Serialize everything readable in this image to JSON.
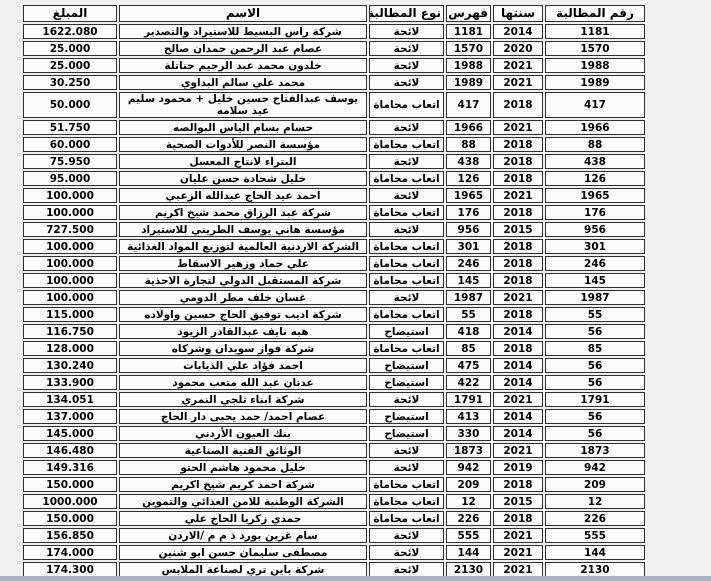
{
  "page": {
    "background_color": "#f1f1f1",
    "bottom_strip_color": "#aab5c1",
    "cell_background": "#fcfcfc",
    "border_color": "#2f2f2f"
  },
  "table": {
    "columns": [
      {
        "key": "claim_no",
        "label": "رقم المطالبة"
      },
      {
        "key": "year",
        "label": "سنتها"
      },
      {
        "key": "index",
        "label": "فهرس"
      },
      {
        "key": "claim_type",
        "label": "نوع المطالبة"
      },
      {
        "key": "name",
        "label": "الاسم"
      },
      {
        "key": "amount",
        "label": "المبلغ"
      }
    ],
    "rows": [
      {
        "claim_no": "1181",
        "year": "2014",
        "index": "1181",
        "claim_type": "لائحة",
        "name": "شركة راس البسيط للاستيراد والتصدير",
        "amount": "1622.080"
      },
      {
        "claim_no": "1570",
        "year": "2020",
        "index": "1570",
        "claim_type": "لائحة",
        "name": "عصام عبد الرحمن حمدان صالح",
        "amount": "25.000"
      },
      {
        "claim_no": "1988",
        "year": "2021",
        "index": "1988",
        "claim_type": "لائحة",
        "name": "خلدون محمد عبد الرحيم حناتلة",
        "amount": "25.000"
      },
      {
        "claim_no": "1989",
        "year": "2021",
        "index": "1989",
        "claim_type": "لائحة",
        "name": "محمد علي سالم البداوي",
        "amount": "30.250"
      },
      {
        "claim_no": "417",
        "year": "2018",
        "index": "417",
        "claim_type": "اتعاب محاماة",
        "name": "يوسف عبدالفتاح حسين خليل + محمود سليم عيد سلامه",
        "amount": "50.000"
      },
      {
        "claim_no": "1966",
        "year": "2021",
        "index": "1966",
        "claim_type": "لائحة",
        "name": "حسام بسام الياس البوالصه",
        "amount": "51.750"
      },
      {
        "claim_no": "88",
        "year": "2018",
        "index": "88",
        "claim_type": "اتعاب محاماة",
        "name": "مؤسسة النصر للأدوات الصحية",
        "amount": "60.000"
      },
      {
        "claim_no": "438",
        "year": "2018",
        "index": "438",
        "claim_type": "لائحة",
        "name": "البتراء لانتاج المعسل",
        "amount": "75.950"
      },
      {
        "claim_no": "126",
        "year": "2018",
        "index": "126",
        "claim_type": "اتعاب محاماة",
        "name": "خليل شحادة حسن عليان",
        "amount": "95.000"
      },
      {
        "claim_no": "1965",
        "year": "2021",
        "index": "1965",
        "claim_type": "لائحة",
        "name": "احمد عيد الحاج عبدالله الزعبي",
        "amount": "100.000"
      },
      {
        "claim_no": "176",
        "year": "2018",
        "index": "176",
        "claim_type": "اتعاب محاماة",
        "name": "شركة عبد الرزاق محمد شيخ اكريم",
        "amount": "100.000"
      },
      {
        "claim_no": "956",
        "year": "2015",
        "index": "956",
        "claim_type": "لائحة",
        "name": "مؤسسة هاني يوسف الطريني للاستيراد",
        "amount": "727.500"
      },
      {
        "claim_no": "301",
        "year": "2018",
        "index": "301",
        "claim_type": "اتعاب محاماة",
        "name": "الشركة الاردنية العالمية لتوزيع المواد الغذائية",
        "amount": "100.000"
      },
      {
        "claim_no": "246",
        "year": "2018",
        "index": "246",
        "claim_type": "اتعاب محاماة",
        "name": "علي حماد وزهير الاسقاط",
        "amount": "100.000"
      },
      {
        "claim_no": "145",
        "year": "2018",
        "index": "145",
        "claim_type": "اتعاب محاماة",
        "name": "شركة المستقبل الدولي لتجارة الاحذية",
        "amount": "100.000"
      },
      {
        "claim_no": "1987",
        "year": "2021",
        "index": "1987",
        "claim_type": "لائحة",
        "name": "غسان خلف مطر الدومي",
        "amount": "100.000"
      },
      {
        "claim_no": "55",
        "year": "2018",
        "index": "55",
        "claim_type": "اتعاب محاماة",
        "name": "شركة اديب توفيق الحاج حسين واولاده",
        "amount": "115.000"
      },
      {
        "claim_no": "56",
        "year": "2014",
        "index": "418",
        "claim_type": "استيضاح",
        "name": "هبه نايف عبدالقادر الزيود",
        "amount": "116.750"
      },
      {
        "claim_no": "85",
        "year": "2018",
        "index": "85",
        "claim_type": "اتعاب محاماة",
        "name": "شركة فواز سويدان وشركاه",
        "amount": "128.000"
      },
      {
        "claim_no": "56",
        "year": "2014",
        "index": "475",
        "claim_type": "استيضاح",
        "name": "احمد فؤاد علي الذيابات",
        "amount": "130.240"
      },
      {
        "claim_no": "56",
        "year": "2014",
        "index": "422",
        "claim_type": "استيضاح",
        "name": "عدنان عبد الله متعب محمود",
        "amount": "133.900"
      },
      {
        "claim_no": "1791",
        "year": "2021",
        "index": "1791",
        "claim_type": "لائحة",
        "name": "شركة ابناء ثلجي النمري",
        "amount": "134.051"
      },
      {
        "claim_no": "56",
        "year": "2014",
        "index": "413",
        "claim_type": "استيضاح",
        "name": "عصام احمد/ حمد يحيى دار الحاج",
        "amount": "137.000"
      },
      {
        "claim_no": "56",
        "year": "2014",
        "index": "330",
        "claim_type": "استيضاح",
        "name": "بنك العيون الأردني",
        "amount": "145.000"
      },
      {
        "claim_no": "1873",
        "year": "2021",
        "index": "1873",
        "claim_type": "لائحة",
        "name": "الوثائق الفنية الصناعية",
        "amount": "146.480"
      },
      {
        "claim_no": "942",
        "year": "2019",
        "index": "942",
        "claim_type": "لائحة",
        "name": "خليل محمود هاشم الحتو",
        "amount": "149.316"
      },
      {
        "claim_no": "209",
        "year": "2018",
        "index": "209",
        "claim_type": "اتعاب محاماة",
        "name": "شركة احمد كريم شيخ اكريم",
        "amount": "150.000"
      },
      {
        "claim_no": "12",
        "year": "2015",
        "index": "12",
        "claim_type": "اتعاب محاماة",
        "name": "الشركة الوطنية للامن الغذائي والتموين",
        "amount": "1000.000"
      },
      {
        "claim_no": "226",
        "year": "2018",
        "index": "226",
        "claim_type": "اتعاب محاماة",
        "name": "حمدي زكريا الحاج علي",
        "amount": "150.000"
      },
      {
        "claim_no": "555",
        "year": "2021",
        "index": "555",
        "claim_type": "لائحة",
        "name": "سام غرين بورد ذ م م /الاردن",
        "amount": "156.850"
      },
      {
        "claim_no": "144",
        "year": "2021",
        "index": "144",
        "claim_type": "لائحة",
        "name": "مصطفى سليمان حسن ابو شنين",
        "amount": "174.000"
      },
      {
        "claim_no": "2130",
        "year": "2021",
        "index": "2130",
        "claim_type": "لائحة",
        "name": "شركة باين تري لصناعة الملابس",
        "amount": "174.300"
      }
    ]
  }
}
